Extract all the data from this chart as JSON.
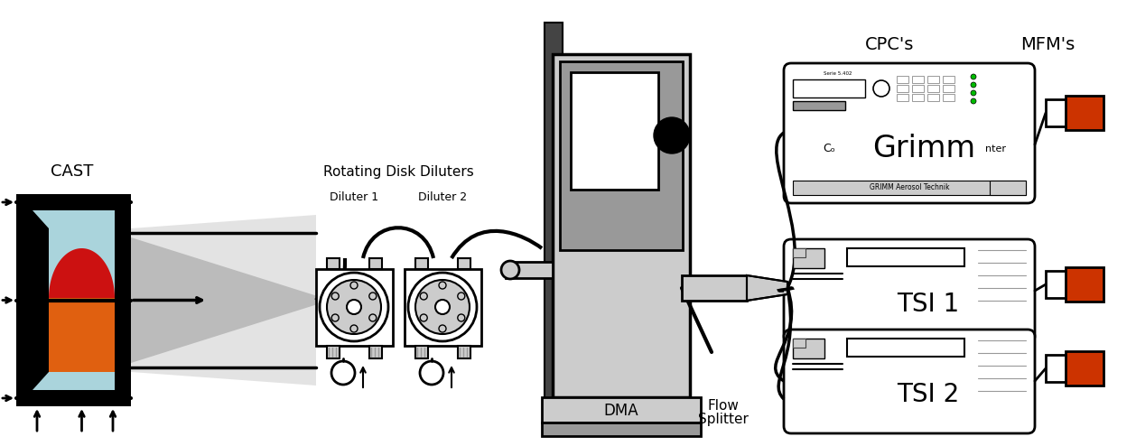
{
  "labels": {
    "cast": "CAST",
    "rdd": "Rotating Disk Diluters",
    "diluter1": "Diluter 1",
    "diluter2": "Diluter 2",
    "dma": "DMA",
    "flow_splitter": "Flow\nSplitter",
    "cpcs": "CPC's",
    "mfms": "MFM's",
    "grimm": "Grimm",
    "tsi1": "TSI 1",
    "tsi2": "TSI 2",
    "counter": "nter",
    "co": "Cₒ",
    "grimm_brand": "GRIMM Aerosol Technik"
  },
  "colors": {
    "background": "#ffffff",
    "black": "#000000",
    "red": "#cc1111",
    "orange": "#e06010",
    "light_blue": "#aad4dc",
    "gray_dark": "#444444",
    "gray_mid": "#999999",
    "gray_light": "#cccccc",
    "gray_box": "#bbbbbb",
    "orange_mfm": "#cc3300",
    "green_led": "#00bb00",
    "white": "#ffffff",
    "smoke": "#aaaaaa"
  },
  "figsize": [
    12.58,
    4.94
  ],
  "dpi": 100
}
